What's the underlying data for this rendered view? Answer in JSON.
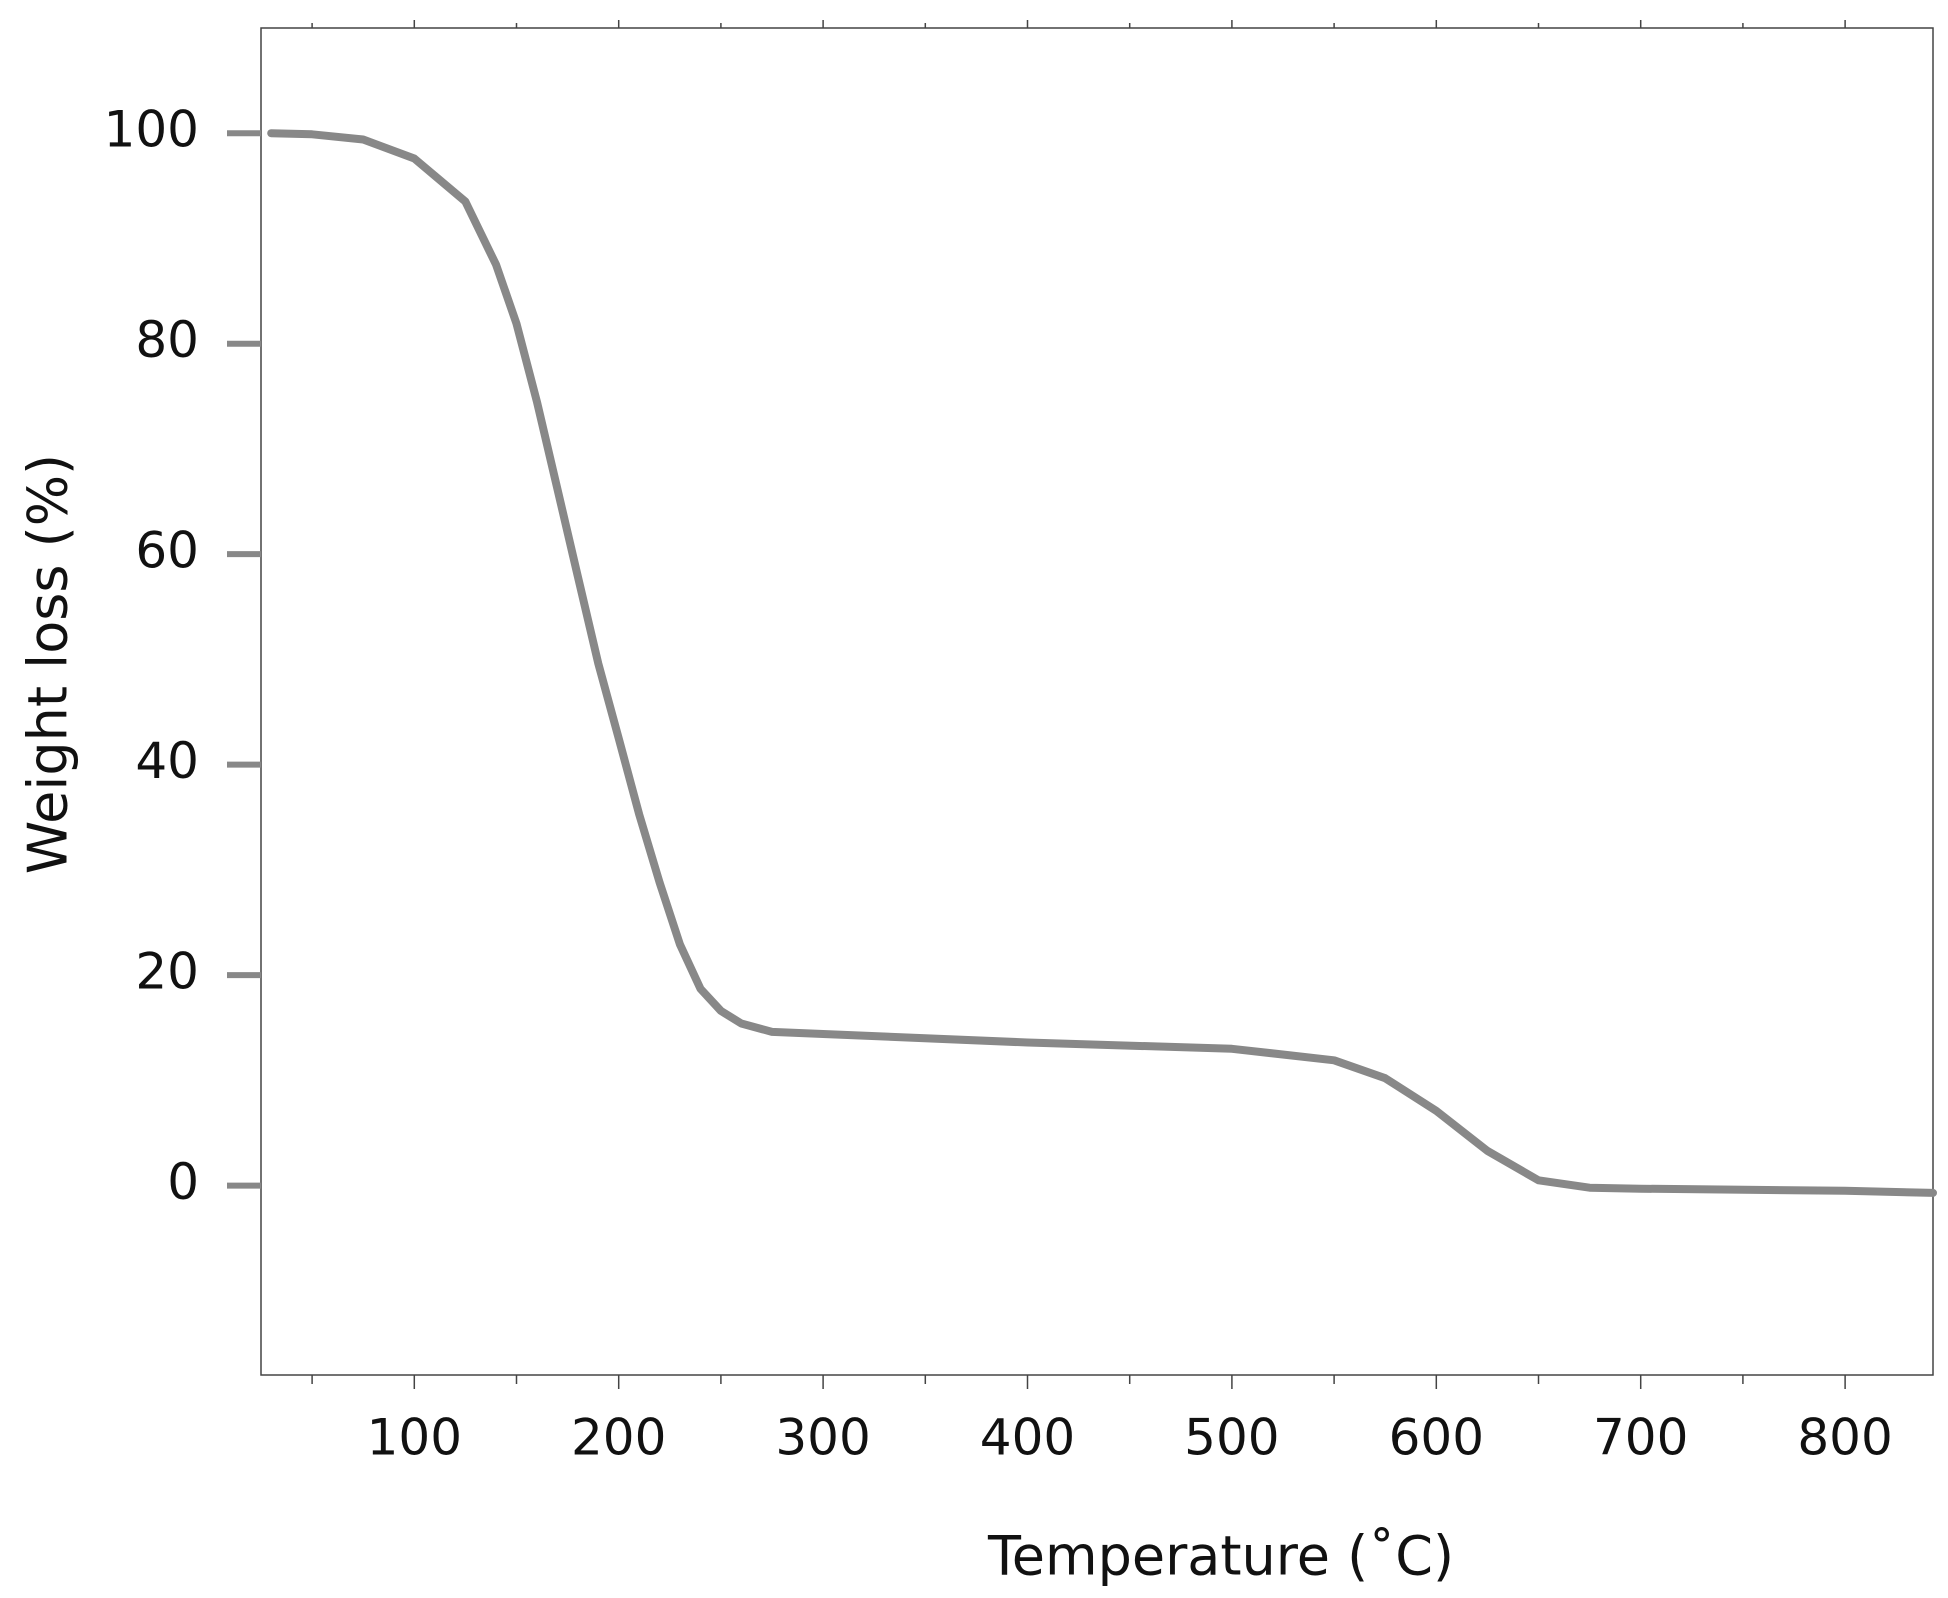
{
  "chart_data": {
    "type": "line",
    "x_label": "Temperature (˚C)",
    "y_label": "Weight loss (%)",
    "xlim": [
      25,
      843
    ],
    "ylim": [
      -18,
      110
    ],
    "xticks": [
      100,
      200,
      300,
      400,
      500,
      600,
      700,
      800
    ],
    "yticks": [
      0,
      20,
      40,
      60,
      80,
      100
    ],
    "xminorticks": [
      50,
      150,
      250,
      350,
      450,
      550,
      650,
      750
    ],
    "grid": false,
    "series": [
      {
        "color": "#888888",
        "x": [
          30,
          50,
          75,
          100,
          125,
          140,
          150,
          160,
          170,
          180,
          190,
          200,
          210,
          220,
          230,
          240,
          250,
          260,
          275,
          300,
          400,
          500,
          550,
          575,
          600,
          625,
          650,
          675,
          700,
          800,
          843
        ],
        "values": [
          100,
          99.9,
          99.4,
          97.6,
          93.5,
          87.5,
          81.9,
          74.5,
          66.2,
          57.9,
          49.6,
          42.5,
          35.3,
          28.8,
          22.9,
          18.7,
          16.6,
          15.4,
          14.6,
          14.4,
          13.6,
          13.0,
          11.9,
          10.2,
          7.1,
          3.3,
          0.5,
          -0.2,
          -0.3,
          -0.5,
          -0.7
        ]
      }
    ]
  }
}
